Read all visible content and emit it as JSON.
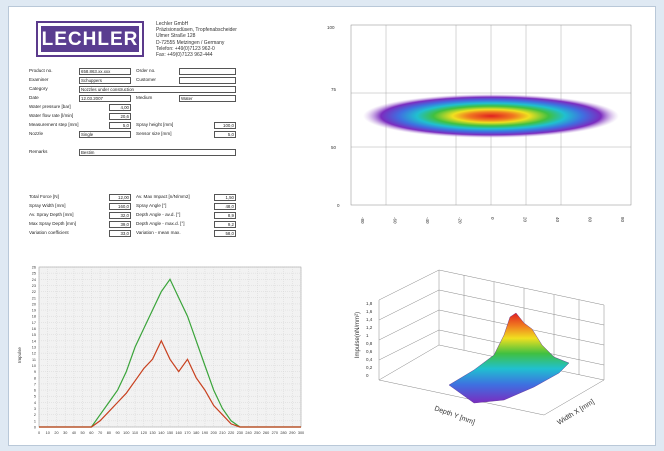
{
  "logo": {
    "text": "LECHLER"
  },
  "company": {
    "lines": [
      "Lechler GmbH",
      "Präzisionsdüsen, Tropfenabscheider",
      "Ulmer Straße 128",
      "D-72555 Metzingen / Germany",
      "Telefon: +49(0)7123 962-0",
      "Fax: +49(0)7123 962-444"
    ]
  },
  "info": {
    "product_no_label": "Product no.",
    "product_no": "658.863.xx.xxx",
    "order_no_label": "Order no.",
    "order_no": "",
    "examiner_label": "Examiner",
    "examiner": "Schuppers",
    "customer_label": "Customer",
    "customer": "",
    "category_label": "Category",
    "category": "Nozzles under construction",
    "date_label": "Date",
    "date": "12.03.2007",
    "medium_label": "Medium",
    "medium": "Water",
    "water_pressure_label": "Water pressure [bar]",
    "water_pressure": "4,00",
    "water_flow_label": "Water flow rate [l/min]",
    "water_flow": "20,6",
    "meas_step_label": "Measurement step [mm]",
    "meas_step": "5,0",
    "spray_height_label": "Spray height [mm]",
    "spray_height": "100,0",
    "nozzle_label": "Nozzle",
    "nozzle": "Single",
    "sensor_size_label": "Sensor size [mm]",
    "sensor_size": "5,0",
    "remarks_label": "Remarks",
    "remarks": "Bestim"
  },
  "results": {
    "total_force_label": "Total Force [N]",
    "total_force": "12,00",
    "spray_width_label": "Spray Width [mm]",
    "spray_width": "160,0",
    "av_spray_depth_label": "Av. Spray Depth [mm]",
    "av_spray_depth": "32,0",
    "max_spray_depth_label": "Max Spray Depth [mm]",
    "max_spray_depth": "39,0",
    "variation_coef_label": "Variation coefficient",
    "variation_coef": "33,0",
    "av_max_impact_label": "Av. Max Impact [n/N/mm2]",
    "av_max_impact": "1,50",
    "spray_angle_label": "Spray Angle [°]",
    "spray_angle": "48,0",
    "depth_angle_av_label": "Depth Angle - av.d. [°]",
    "depth_angle_av": "8,9",
    "depth_angle_max_label": "Depth Angle - max.d. [°]",
    "depth_angle_max": "9,2",
    "variation_mean_max_label": "Variation - mean max.",
    "variation_mean_max": "58,0"
  },
  "chart_data": [
    {
      "type": "line",
      "title": "",
      "xlabel": "",
      "ylabel": "Impulse",
      "x": [
        0,
        10,
        20,
        30,
        40,
        50,
        60,
        70,
        80,
        90,
        100,
        110,
        120,
        130,
        140,
        150,
        160,
        170,
        180,
        190,
        200,
        210,
        220,
        230,
        240,
        250,
        260,
        270,
        280,
        290,
        300
      ],
      "xlim": [
        0,
        300
      ],
      "ylim": [
        0,
        26
      ],
      "xticks": [
        "0",
        "10",
        "20",
        "30",
        "40",
        "50",
        "60",
        "70",
        "80",
        "90",
        "100",
        "110",
        "120",
        "130",
        "140",
        "150",
        "160",
        "170",
        "180",
        "190",
        "200",
        "210",
        "220",
        "230",
        "240",
        "250",
        "260",
        "270",
        "280",
        "290",
        "300"
      ],
      "yticks": [
        "0",
        "1",
        "2",
        "3",
        "4",
        "5",
        "6",
        "7",
        "8",
        "9",
        "10",
        "11",
        "12",
        "13",
        "14",
        "15",
        "16",
        "17",
        "18",
        "19",
        "20",
        "21",
        "22",
        "23",
        "24",
        "25",
        "26"
      ],
      "grid": true,
      "series": [
        {
          "color": "#3aa43a",
          "values": [
            0,
            0,
            0,
            0,
            0,
            0,
            0,
            2,
            4,
            6,
            9,
            13,
            16,
            19,
            22,
            24,
            21,
            18,
            14,
            10,
            6,
            3,
            1,
            0,
            0,
            0,
            0,
            0,
            0,
            0,
            0
          ]
        },
        {
          "color": "#c8401e",
          "values": [
            0,
            0,
            0,
            0,
            0,
            0,
            0,
            1,
            2.5,
            4,
            5.5,
            7.5,
            9.5,
            11,
            14,
            11,
            9,
            11,
            8,
            6,
            3.5,
            2,
            0.5,
            0,
            0,
            0,
            0,
            0,
            0,
            0,
            0
          ]
        }
      ]
    },
    {
      "type": "heatmap",
      "title": "",
      "xticks": [
        "-80",
        "-60",
        "-40",
        "-20",
        "0",
        "20",
        "40",
        "60",
        "80"
      ],
      "yticks": [
        "100",
        "75",
        "50",
        "0"
      ],
      "description_colors": [
        "#7b2cbf",
        "#3f6fe0",
        "#20c0d0",
        "#40c040",
        "#f0e020",
        "#f09020",
        "#e02020"
      ]
    },
    {
      "type": "area",
      "title": "",
      "xlabel": "Depth Y [mm]",
      "ylabel": "Impulse(nN/mm²)",
      "zlabel": "Width X [mm]",
      "zticks": [
        "1,8",
        "1,6",
        "1,4",
        "1,2",
        "1",
        "0,8",
        "0,6",
        "0,4",
        "0,2",
        "0"
      ]
    }
  ],
  "colors": {
    "border": "#b9c8d8",
    "background": "#dfe9f3",
    "logo": "#5a3d90"
  }
}
